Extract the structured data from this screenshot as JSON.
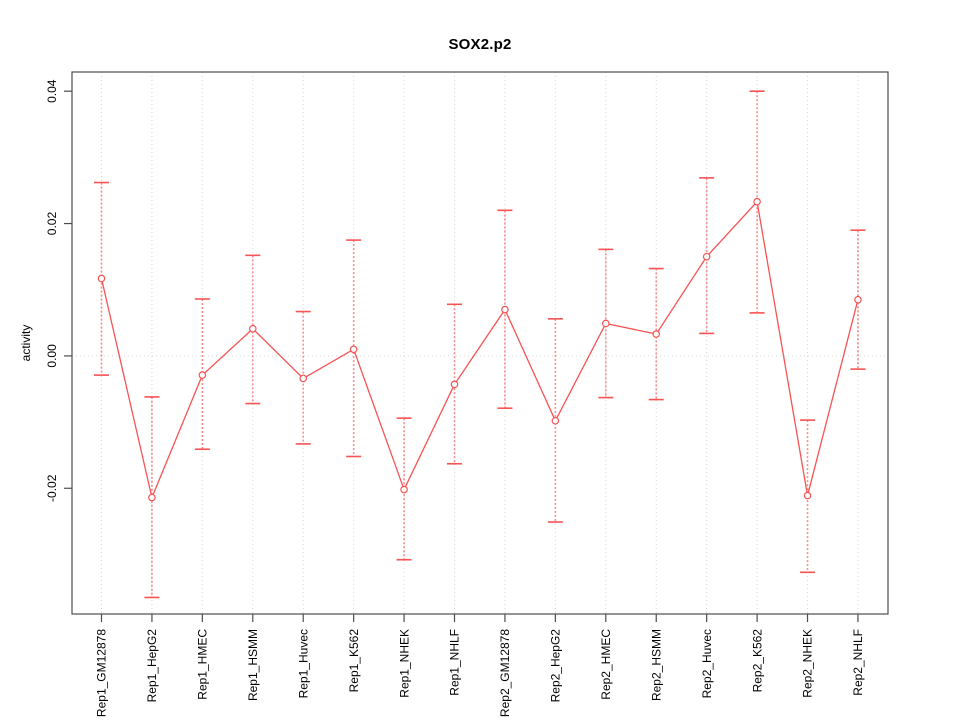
{
  "chart_data": {
    "type": "line",
    "title": "SOX2.p2",
    "xlabel": "",
    "ylabel": "activity",
    "categories": [
      "Rep1_GM12878",
      "Rep1_HepG2",
      "Rep1_HMEC",
      "Rep1_HSMM",
      "Rep1_Huvec",
      "Rep1_K562",
      "Rep1_NHEK",
      "Rep1_NHLF",
      "Rep2_GM12878",
      "Rep2_HepG2",
      "Rep2_HMEC",
      "Rep2_HSMM",
      "Rep2_Huvec",
      "Rep2_K562",
      "Rep2_NHEK",
      "Rep2_NHLF"
    ],
    "series": [
      {
        "name": "activity",
        "values": [
          0.0117,
          -0.0214,
          -0.0029,
          0.0041,
          -0.0034,
          0.001,
          -0.0202,
          -0.0043,
          0.007,
          -0.0098,
          0.0049,
          0.0033,
          0.015,
          0.0233,
          -0.0211,
          0.0085
        ],
        "error_high": [
          0.0262,
          -0.0062,
          0.0086,
          0.0152,
          0.0067,
          0.0175,
          -0.0094,
          0.0078,
          0.022,
          0.0056,
          0.0161,
          0.0132,
          0.0269,
          0.04,
          -0.0097,
          0.019
        ],
        "error_low": [
          -0.0029,
          -0.0365,
          -0.0141,
          -0.0072,
          -0.0133,
          -0.0152,
          -0.0308,
          -0.0163,
          -0.0079,
          -0.0251,
          -0.0063,
          -0.0066,
          0.0034,
          0.0065,
          -0.0327,
          -0.002
        ]
      }
    ],
    "yticks": [
      -0.02,
      0,
      0.02,
      0.04
    ],
    "ytick_labels": [
      "-0.02",
      "0.00",
      "0.02",
      "0.04"
    ],
    "ylim": [
      -0.039,
      0.0429
    ],
    "grid": {
      "vertical": "dotted line at every category",
      "horizontal": "dotted line at 0 only"
    },
    "legend": "none",
    "marker": "open-circle",
    "colors": {
      "series": "#f75353",
      "error_stem": "#f98e8e",
      "grid": "#d6d6d6",
      "axis": "#4d4d4d",
      "text": "#000000",
      "background": "#ffffff"
    }
  }
}
